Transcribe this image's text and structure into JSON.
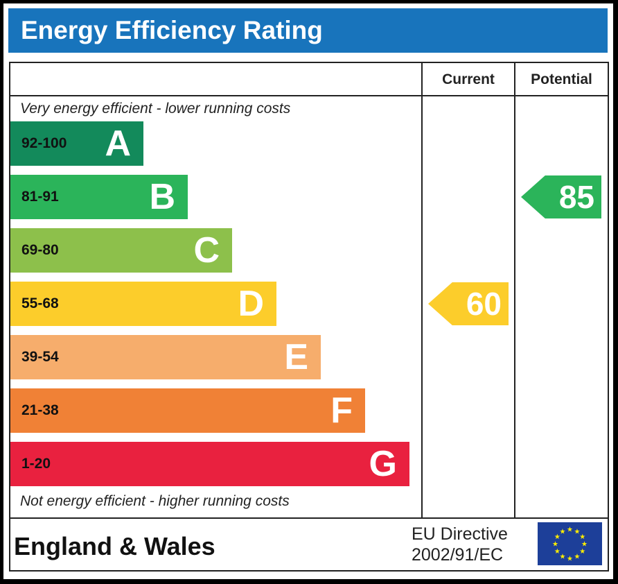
{
  "title": "Energy Efficiency Rating",
  "chart_data": {
    "type": "bar",
    "title": "Energy Efficiency Rating",
    "columns": [
      "Current",
      "Potential"
    ],
    "top_note": "Very energy efficient - lower running costs",
    "bottom_note": "Not energy efficient - higher running costs",
    "bands": [
      {
        "letter": "A",
        "range": "92-100",
        "color": "#138a5b"
      },
      {
        "letter": "B",
        "range": "81-91",
        "color": "#2bb45a"
      },
      {
        "letter": "C",
        "range": "69-80",
        "color": "#8dc04b"
      },
      {
        "letter": "D",
        "range": "55-68",
        "color": "#fccd2b"
      },
      {
        "letter": "E",
        "range": "39-54",
        "color": "#f6ad6c"
      },
      {
        "letter": "F",
        "range": "21-38",
        "color": "#f08136"
      },
      {
        "letter": "G",
        "range": "1-20",
        "color": "#e9213f"
      }
    ],
    "current": {
      "value": 60,
      "band": "D"
    },
    "potential": {
      "value": 85,
      "band": "B"
    }
  },
  "footer": {
    "region": "England & Wales",
    "directive_line1": "EU Directive",
    "directive_line2": "2002/91/EC"
  },
  "icons": {
    "flag": "eu-flag-icon"
  }
}
